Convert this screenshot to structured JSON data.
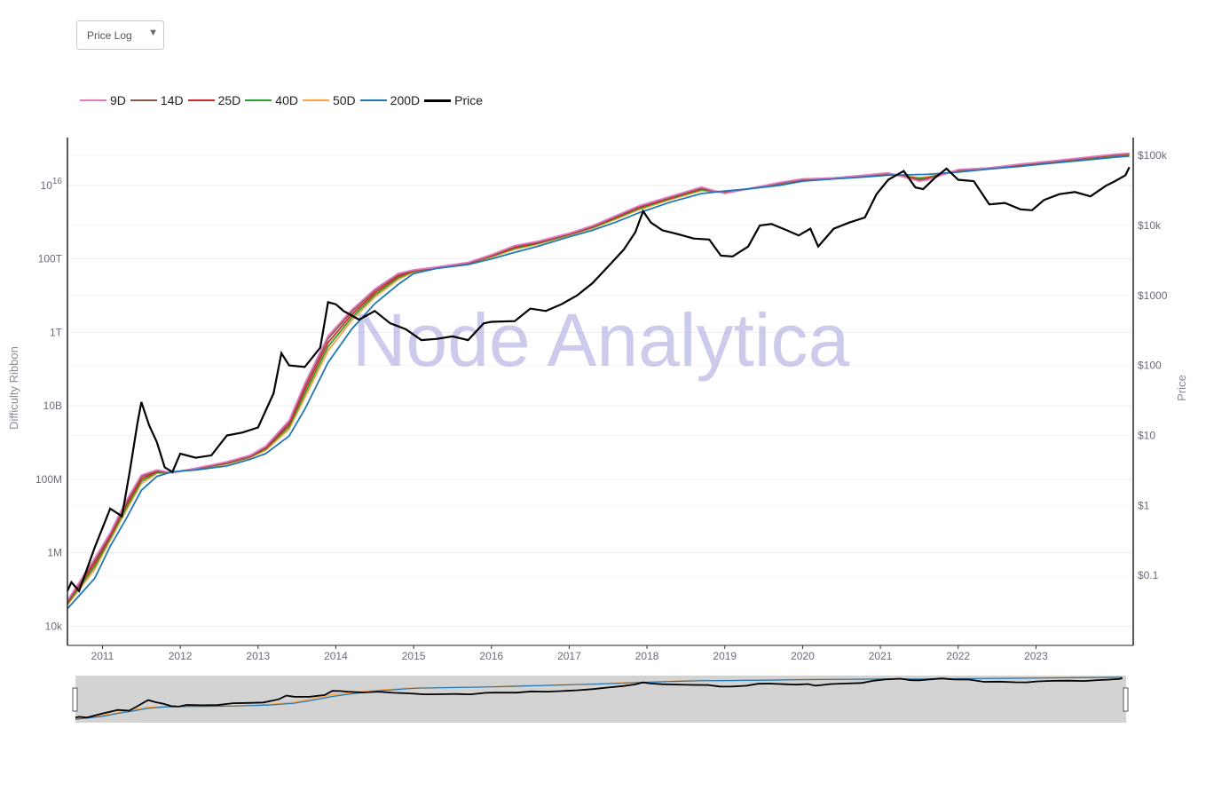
{
  "controls": {
    "scale_select": {
      "value": "Price Log"
    }
  },
  "watermark": "Node Analytica",
  "colors": {
    "d9": "#e377c2",
    "d14": "#8c564b",
    "d25": "#d62728",
    "d40": "#2ca02c",
    "d50": "#ff9f40",
    "d200": "#1f77b4",
    "price": "#000000"
  },
  "chart_data": {
    "type": "line",
    "left_axis": {
      "title": "Difficulty Ribbon",
      "scale": "log",
      "range": [
        3000,
        200000000000000000
      ],
      "ticks": [
        {
          "value": 10000,
          "label": "10k"
        },
        {
          "value": 1000000,
          "label": "1M"
        },
        {
          "value": 100000000,
          "label": "100M"
        },
        {
          "value": 10000000000,
          "label": "10B"
        },
        {
          "value": 1000000000000,
          "label": "1T"
        },
        {
          "value": 100000000000000,
          "label": "100T"
        },
        {
          "value": 10000000000000000,
          "label": "10",
          "sup": "16"
        }
      ]
    },
    "right_axis": {
      "title": "Price",
      "scale": "log",
      "range": [
        0.01,
        180000
      ],
      "ticks": [
        {
          "value": 0.1,
          "label": "$0.1"
        },
        {
          "value": 1,
          "label": "$1"
        },
        {
          "value": 10,
          "label": "$10"
        },
        {
          "value": 100,
          "label": "$100"
        },
        {
          "value": 1000,
          "label": "$1000"
        },
        {
          "value": 10000,
          "label": "$10k"
        },
        {
          "value": 100000,
          "label": "$100k"
        }
      ]
    },
    "x_axis": {
      "range": [
        2010.55,
        2024.25
      ],
      "ticks": [
        "2011",
        "2012",
        "2013",
        "2014",
        "2015",
        "2016",
        "2017",
        "2018",
        "2019",
        "2020",
        "2021",
        "2022",
        "2023"
      ]
    },
    "legend": {
      "placement": "top-left",
      "entries": [
        {
          "key": "d9",
          "label": "9D"
        },
        {
          "key": "d14",
          "label": "14D"
        },
        {
          "key": "d25",
          "label": "25D"
        },
        {
          "key": "d40",
          "label": "40D"
        },
        {
          "key": "d50",
          "label": "50D"
        },
        {
          "key": "d200",
          "label": "200D"
        },
        {
          "key": "price",
          "label": "Price"
        }
      ]
    },
    "difficulty_ma200": [
      [
        2010.55,
        30000
      ],
      [
        2010.9,
        200000
      ],
      [
        2011.1,
        1500000
      ],
      [
        2011.3,
        8000000
      ],
      [
        2011.5,
        50000000
      ],
      [
        2011.7,
        120000000
      ],
      [
        2011.9,
        160000000
      ],
      [
        2012.2,
        180000000
      ],
      [
        2012.6,
        230000000
      ],
      [
        2012.9,
        350000000
      ],
      [
        2013.1,
        500000000
      ],
      [
        2013.4,
        1500000000
      ],
      [
        2013.6,
        8000000000
      ],
      [
        2013.9,
        150000000000
      ],
      [
        2014.2,
        1200000000000
      ],
      [
        2014.5,
        6000000000000
      ],
      [
        2014.8,
        20000000000000
      ],
      [
        2015.0,
        40000000000000
      ],
      [
        2015.3,
        55000000000000
      ],
      [
        2015.7,
        70000000000000
      ],
      [
        2016.0,
        100000000000000
      ],
      [
        2016.3,
        150000000000000
      ],
      [
        2016.6,
        220000000000000
      ],
      [
        2017.0,
        400000000000000
      ],
      [
        2017.3,
        600000000000000
      ],
      [
        2017.6,
        1000000000000000
      ],
      [
        2017.9,
        1800000000000000
      ],
      [
        2018.3,
        3500000000000000
      ],
      [
        2018.7,
        6000000000000000
      ],
      [
        2019.0,
        7000000000000000
      ],
      [
        2019.3,
        8000000000000000
      ],
      [
        2019.7,
        10000000000000000
      ],
      [
        2020.0,
        13000000000000000
      ],
      [
        2020.4,
        15000000000000000
      ],
      [
        2020.8,
        17000000000000000
      ],
      [
        2021.1,
        19000000000000000
      ],
      [
        2021.6,
        20000000000000000
      ],
      [
        2022.0,
        23000000000000000
      ],
      [
        2022.4,
        28000000000000000
      ],
      [
        2022.8,
        33000000000000000
      ],
      [
        2023.2,
        40000000000000000
      ],
      [
        2023.6,
        48000000000000000
      ],
      [
        2024.0,
        58000000000000000
      ],
      [
        2024.2,
        63000000000000000
      ]
    ],
    "difficulty_ma9": [
      [
        2010.55,
        50000
      ],
      [
        2010.9,
        700000
      ],
      [
        2011.1,
        3500000
      ],
      [
        2011.3,
        25000000
      ],
      [
        2011.5,
        130000000
      ],
      [
        2011.7,
        180000000
      ],
      [
        2011.9,
        150000000
      ],
      [
        2012.2,
        200000000
      ],
      [
        2012.6,
        300000000
      ],
      [
        2012.9,
        450000000
      ],
      [
        2013.1,
        800000000
      ],
      [
        2013.4,
        4000000000
      ],
      [
        2013.6,
        40000000000
      ],
      [
        2013.9,
        800000000000
      ],
      [
        2014.2,
        4000000000000
      ],
      [
        2014.5,
        15000000000000
      ],
      [
        2014.8,
        40000000000000
      ],
      [
        2015.0,
        50000000000000
      ],
      [
        2015.3,
        60000000000000
      ],
      [
        2015.7,
        80000000000000
      ],
      [
        2016.0,
        130000000000000
      ],
      [
        2016.3,
        230000000000000
      ],
      [
        2016.6,
        300000000000000
      ],
      [
        2017.0,
        500000000000000
      ],
      [
        2017.3,
        800000000000000
      ],
      [
        2017.6,
        1500000000000000
      ],
      [
        2017.9,
        2800000000000000
      ],
      [
        2018.3,
        5000000000000000
      ],
      [
        2018.7,
        9000000000000000
      ],
      [
        2019.0,
        6000000000000000
      ],
      [
        2019.3,
        8000000000000000
      ],
      [
        2019.7,
        12000000000000000
      ],
      [
        2020.0,
        15000000000000000
      ],
      [
        2020.4,
        16000000000000000
      ],
      [
        2020.8,
        19000000000000000
      ],
      [
        2021.1,
        22000000000000000
      ],
      [
        2021.5,
        13000000000000000
      ],
      [
        2021.6,
        14000000000000000
      ],
      [
        2022.0,
        27000000000000000
      ],
      [
        2022.4,
        30000000000000000
      ],
      [
        2022.8,
        38000000000000000
      ],
      [
        2023.2,
        46000000000000000
      ],
      [
        2023.6,
        57000000000000000
      ],
      [
        2024.0,
        70000000000000000
      ],
      [
        2024.2,
        75000000000000000
      ]
    ],
    "price": [
      [
        2010.55,
        0.06
      ],
      [
        2010.6,
        0.08
      ],
      [
        2010.7,
        0.06
      ],
      [
        2010.9,
        0.25
      ],
      [
        2011.1,
        0.9
      ],
      [
        2011.25,
        0.7
      ],
      [
        2011.35,
        3.0
      ],
      [
        2011.45,
        15
      ],
      [
        2011.5,
        30
      ],
      [
        2011.6,
        14
      ],
      [
        2011.7,
        8
      ],
      [
        2011.8,
        3.5
      ],
      [
        2011.9,
        3.0
      ],
      [
        2012.0,
        5.5
      ],
      [
        2012.2,
        4.8
      ],
      [
        2012.4,
        5.2
      ],
      [
        2012.6,
        10
      ],
      [
        2012.8,
        11
      ],
      [
        2013.0,
        13
      ],
      [
        2013.2,
        40
      ],
      [
        2013.3,
        150
      ],
      [
        2013.4,
        100
      ],
      [
        2013.6,
        95
      ],
      [
        2013.8,
        180
      ],
      [
        2013.9,
        800
      ],
      [
        2014.0,
        750
      ],
      [
        2014.1,
        600
      ],
      [
        2014.3,
        450
      ],
      [
        2014.5,
        600
      ],
      [
        2014.7,
        400
      ],
      [
        2014.9,
        330
      ],
      [
        2015.1,
        230
      ],
      [
        2015.3,
        240
      ],
      [
        2015.5,
        260
      ],
      [
        2015.7,
        230
      ],
      [
        2015.9,
        400
      ],
      [
        2016.0,
        420
      ],
      [
        2016.3,
        430
      ],
      [
        2016.5,
        650
      ],
      [
        2016.7,
        600
      ],
      [
        2016.9,
        750
      ],
      [
        2017.1,
        1000
      ],
      [
        2017.3,
        1500
      ],
      [
        2017.5,
        2600
      ],
      [
        2017.7,
        4500
      ],
      [
        2017.85,
        8000
      ],
      [
        2017.95,
        16000
      ],
      [
        2018.05,
        11000
      ],
      [
        2018.2,
        8500
      ],
      [
        2018.4,
        7500
      ],
      [
        2018.6,
        6500
      ],
      [
        2018.8,
        6300
      ],
      [
        2018.95,
        3700
      ],
      [
        2019.1,
        3600
      ],
      [
        2019.3,
        5000
      ],
      [
        2019.45,
        10000
      ],
      [
        2019.6,
        10500
      ],
      [
        2019.8,
        8500
      ],
      [
        2019.95,
        7200
      ],
      [
        2020.1,
        9000
      ],
      [
        2020.2,
        5000
      ],
      [
        2020.4,
        9000
      ],
      [
        2020.6,
        11000
      ],
      [
        2020.8,
        13000
      ],
      [
        2020.95,
        28000
      ],
      [
        2021.1,
        45000
      ],
      [
        2021.3,
        60000
      ],
      [
        2021.45,
        35000
      ],
      [
        2021.55,
        33000
      ],
      [
        2021.7,
        48000
      ],
      [
        2021.85,
        65000
      ],
      [
        2022.0,
        45000
      ],
      [
        2022.2,
        43000
      ],
      [
        2022.4,
        20000
      ],
      [
        2022.6,
        21000
      ],
      [
        2022.8,
        17000
      ],
      [
        2022.95,
        16500
      ],
      [
        2023.1,
        23000
      ],
      [
        2023.3,
        28000
      ],
      [
        2023.5,
        30000
      ],
      [
        2023.7,
        26000
      ],
      [
        2023.9,
        37000
      ],
      [
        2024.0,
        42000
      ],
      [
        2024.15,
        52000
      ],
      [
        2024.2,
        68000
      ]
    ]
  }
}
